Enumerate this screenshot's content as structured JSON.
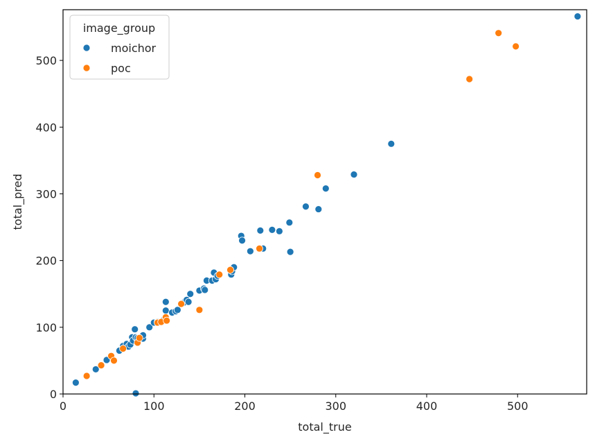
{
  "chart_data": {
    "type": "scatter",
    "title": "",
    "xlabel": "total_true",
    "ylabel": "total_pred",
    "xlim": [
      0,
      576
    ],
    "ylim": [
      0,
      576
    ],
    "xticks": [
      0,
      100,
      200,
      300,
      400,
      500
    ],
    "yticks": [
      0,
      100,
      200,
      300,
      400,
      500
    ],
    "grid": false,
    "legend": {
      "title": "image_group",
      "placement": "top-left"
    },
    "series": [
      {
        "name": "moichor",
        "color": "#1f77b4",
        "points": [
          [
            14,
            17
          ],
          [
            36,
            37
          ],
          [
            48,
            51
          ],
          [
            62,
            65
          ],
          [
            66,
            72
          ],
          [
            70,
            75
          ],
          [
            72,
            71
          ],
          [
            74,
            74
          ],
          [
            76,
            85
          ],
          [
            77,
            80
          ],
          [
            79,
            97
          ],
          [
            80,
            85
          ],
          [
            80,
            1
          ],
          [
            82,
            84
          ],
          [
            88,
            83
          ],
          [
            88,
            88
          ],
          [
            95,
            100
          ],
          [
            100,
            107
          ],
          [
            104,
            108
          ],
          [
            110,
            110
          ],
          [
            113,
            125
          ],
          [
            113,
            138
          ],
          [
            120,
            122
          ],
          [
            124,
            124
          ],
          [
            126,
            126
          ],
          [
            133,
            137
          ],
          [
            136,
            141
          ],
          [
            138,
            138
          ],
          [
            140,
            150
          ],
          [
            150,
            155
          ],
          [
            155,
            158
          ],
          [
            156,
            156
          ],
          [
            158,
            170
          ],
          [
            164,
            170
          ],
          [
            166,
            182
          ],
          [
            168,
            172
          ],
          [
            170,
            177
          ],
          [
            185,
            179
          ],
          [
            186,
            184
          ],
          [
            188,
            190
          ],
          [
            196,
            237
          ],
          [
            197,
            230
          ],
          [
            206,
            214
          ],
          [
            217,
            245
          ],
          [
            220,
            218
          ],
          [
            230,
            246
          ],
          [
            238,
            244
          ],
          [
            249,
            257
          ],
          [
            250,
            213
          ],
          [
            267,
            281
          ],
          [
            281,
            277
          ],
          [
            289,
            308
          ],
          [
            320,
            329
          ],
          [
            361,
            375
          ],
          [
            566,
            566
          ]
        ]
      },
      {
        "name": "poc",
        "color": "#ff7f0e",
        "points": [
          [
            26,
            27
          ],
          [
            42,
            43
          ],
          [
            53,
            57
          ],
          [
            56,
            50
          ],
          [
            66,
            68
          ],
          [
            82,
            77
          ],
          [
            84,
            84
          ],
          [
            104,
            107
          ],
          [
            108,
            108
          ],
          [
            113,
            115
          ],
          [
            114,
            110
          ],
          [
            130,
            135
          ],
          [
            150,
            126
          ],
          [
            172,
            179
          ],
          [
            184,
            186
          ],
          [
            216,
            218
          ],
          [
            280,
            328
          ],
          [
            447,
            472
          ],
          [
            479,
            541
          ],
          [
            498,
            521
          ]
        ]
      }
    ]
  }
}
